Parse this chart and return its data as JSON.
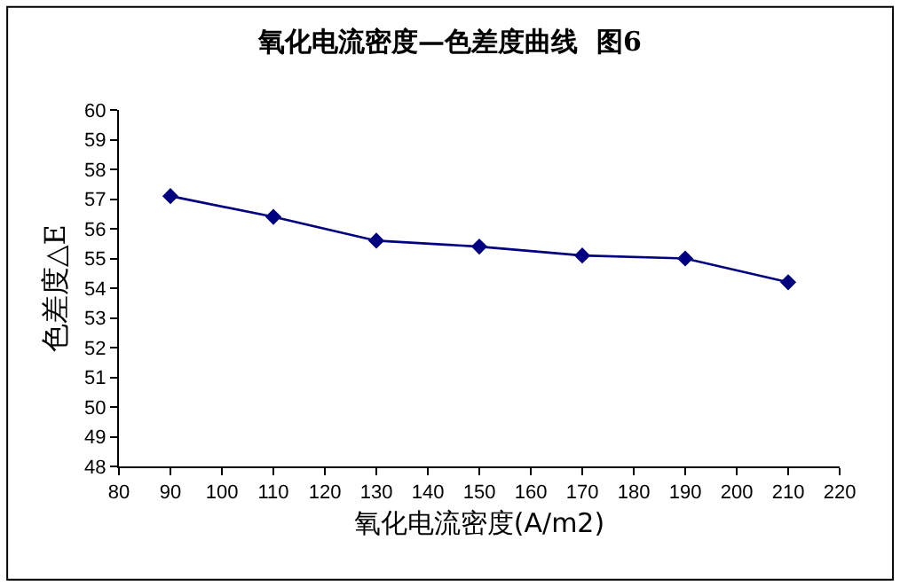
{
  "chart_data": {
    "type": "line",
    "title": "氧化电流密度—色差度曲线  图6",
    "xlabel": "氧化电流密度(A/m2)",
    "ylabel": "色差度△E",
    "x": [
      90,
      110,
      130,
      150,
      170,
      190,
      210
    ],
    "series": [
      {
        "color": "#000080",
        "values": [
          57.1,
          56.4,
          55.6,
          55.4,
          55.1,
          55.0,
          54.2
        ]
      }
    ],
    "xlim": [
      80,
      220
    ],
    "xticks": [
      80,
      90,
      100,
      110,
      120,
      130,
      140,
      150,
      160,
      170,
      180,
      190,
      200,
      210,
      220
    ],
    "ylim": [
      48,
      60
    ],
    "yticks": [
      48,
      49,
      50,
      51,
      52,
      53,
      54,
      55,
      56,
      57,
      58,
      59,
      60
    ],
    "legend": false,
    "marker": "diamond",
    "line_style": "solid"
  }
}
